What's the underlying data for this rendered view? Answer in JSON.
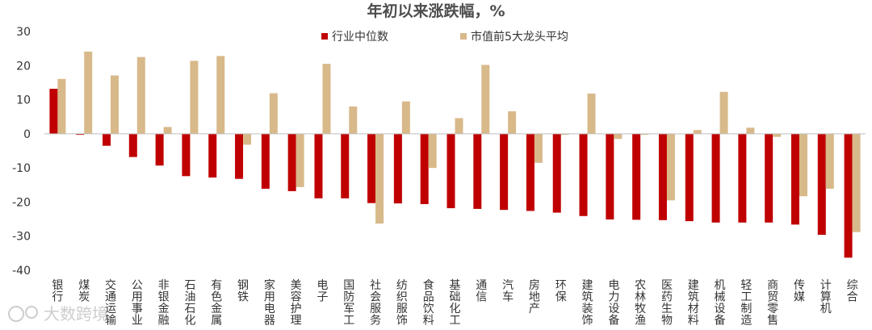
{
  "chart_data": {
    "type": "bar",
    "title": "年初以来涨跌幅，%",
    "xlabel": "",
    "ylabel": "",
    "ylim": [
      -40,
      30
    ],
    "yticks": [
      30,
      20,
      10,
      0,
      -10,
      -20,
      -30,
      -40
    ],
    "grid": false,
    "legend_position": "top-center",
    "categories": [
      "银行",
      "煤炭",
      "交通运输",
      "公用事业",
      "非银金融",
      "石油石化",
      "有色金属",
      "钢铁",
      "家用电器",
      "美容护理",
      "电子",
      "国防军工",
      "社会服务",
      "纺织服饰",
      "食品饮料",
      "基础化工",
      "通信",
      "汽车",
      "房地产",
      "环保",
      "建筑装饰",
      "电力设备",
      "农林牧渔",
      "医药生物",
      "建筑材料",
      "机械设备",
      "轻工制造",
      "商贸零售",
      "传媒",
      "计算机",
      "综合"
    ],
    "series": [
      {
        "name": "行业中位数",
        "color": "#c00000",
        "values": [
          13.2,
          -0.3,
          -3.5,
          -6.8,
          -9.3,
          -12.4,
          -12.8,
          -13.2,
          -16.1,
          -16.8,
          -18.9,
          -18.9,
          -20.3,
          -20.4,
          -20.6,
          -21.8,
          -22.0,
          -22.3,
          -22.6,
          -23.1,
          -24.1,
          -25.1,
          -25.2,
          -25.3,
          -25.6,
          -26.0,
          -26.0,
          -26.0,
          -26.6,
          -29.6,
          -36.3
        ]
      },
      {
        "name": "市值前5大龙头平均",
        "color": "#d8b98a",
        "values": [
          16.1,
          24.1,
          17.1,
          22.5,
          2.0,
          21.4,
          22.8,
          -3.2,
          11.9,
          -15.6,
          20.5,
          8.0,
          -26.3,
          9.5,
          -10.0,
          4.6,
          20.2,
          6.6,
          -8.5,
          -0.3,
          11.8,
          -1.5,
          -0.3,
          -19.5,
          1.1,
          12.3,
          1.8,
          -0.9,
          -18.3,
          -16.1,
          -28.8
        ]
      }
    ]
  },
  "watermark": "大数跨境"
}
